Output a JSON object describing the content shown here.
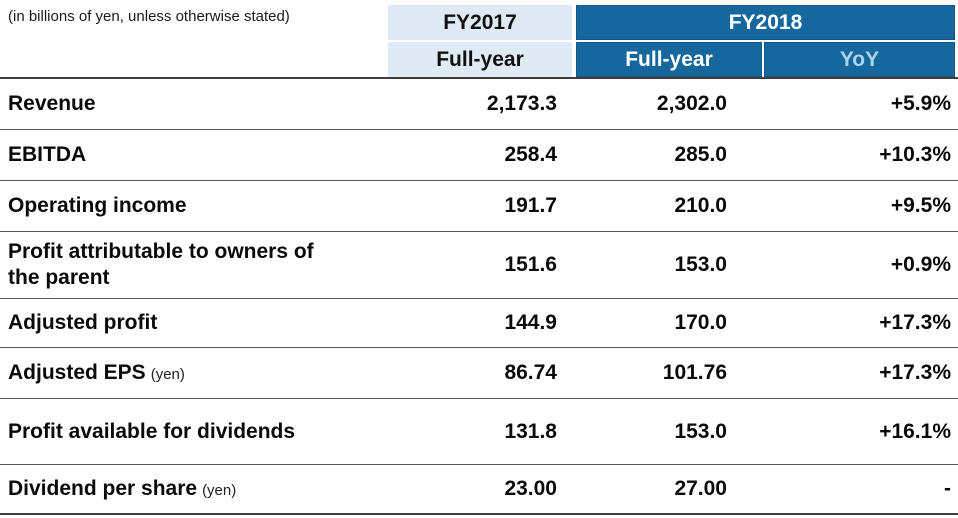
{
  "note": "(in billions of yen, unless otherwise stated)",
  "header": {
    "fy2017": {
      "label": "FY2017",
      "sub": "Full-year"
    },
    "fy2018": {
      "label": "FY2018",
      "sub_fullyear": "Full-year",
      "sub_yoy": "YoY"
    }
  },
  "rows": [
    {
      "label": "Revenue",
      "suffix": "",
      "fy2017": "2,173.3",
      "fy2018": "2,302.0",
      "yoy": "+5.9%"
    },
    {
      "label": "EBITDA",
      "suffix": "",
      "fy2017": "258.4",
      "fy2018": "285.0",
      "yoy": "+10.3%"
    },
    {
      "label": "Operating income",
      "suffix": "",
      "fy2017": "191.7",
      "fy2018": "210.0",
      "yoy": "+9.5%"
    },
    {
      "label": "Profit attributable to owners of\nthe parent",
      "suffix": "",
      "fy2017": "151.6",
      "fy2018": "153.0",
      "yoy": "+0.9%"
    },
    {
      "label": "Adjusted profit",
      "suffix": "",
      "fy2017": "144.9",
      "fy2018": "170.0",
      "yoy": "+17.3%"
    },
    {
      "label": "Adjusted EPS",
      "suffix": "(yen)",
      "fy2017": "86.74",
      "fy2018": "101.76",
      "yoy": "+17.3%"
    },
    {
      "label": "Profit available for dividends",
      "suffix": "",
      "fy2017": "131.8",
      "fy2018": "153.0",
      "yoy": "+16.1%"
    },
    {
      "label": "Dividend per share",
      "suffix": "(yen)",
      "fy2017": "23.00",
      "fy2018": "27.00",
      "yoy": "-"
    }
  ],
  "colors": {
    "header_light_blue": "#dfeaf5",
    "header_dark_blue": "#16689c",
    "yoy_label_text": "#a9d3ee",
    "separator": "#585858",
    "text": "#0a0a0a"
  },
  "chart_data": {
    "type": "table",
    "title": "",
    "unit_note": "(in billions of yen, unless otherwise stated)",
    "columns": [
      "Metric",
      "FY2017 Full-year",
      "FY2018 Full-year",
      "FY2018 YoY"
    ],
    "rows": [
      [
        "Revenue",
        2173.3,
        2302.0,
        "+5.9%"
      ],
      [
        "EBITDA",
        258.4,
        285.0,
        "+10.3%"
      ],
      [
        "Operating income",
        191.7,
        210.0,
        "+9.5%"
      ],
      [
        "Profit attributable to owners of the parent",
        151.6,
        153.0,
        "+0.9%"
      ],
      [
        "Adjusted profit",
        144.9,
        170.0,
        "+17.3%"
      ],
      [
        "Adjusted EPS (yen)",
        86.74,
        101.76,
        "+17.3%"
      ],
      [
        "Profit available for dividends",
        131.8,
        153.0,
        "+16.1%"
      ],
      [
        "Dividend per share (yen)",
        23.0,
        27.0,
        "-"
      ]
    ]
  }
}
